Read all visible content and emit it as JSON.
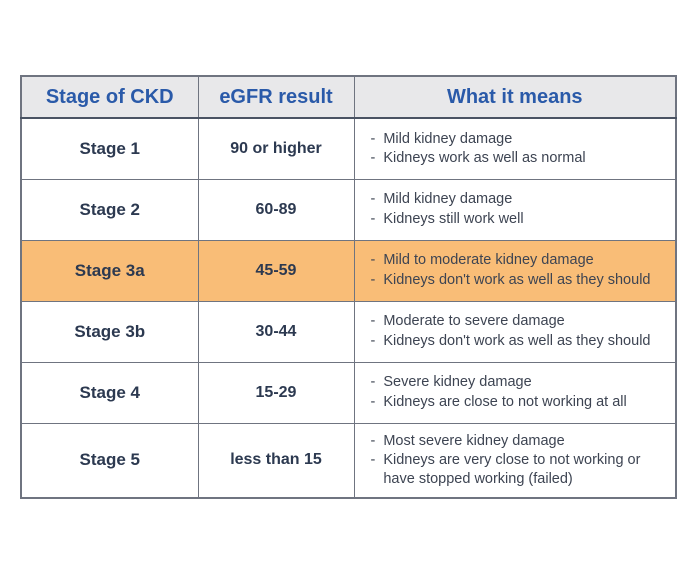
{
  "colors": {
    "header_bg": "#e8e8ea",
    "header_text": "#2a5aa9",
    "header_border": "#4a5363",
    "highlight_bg": "#f9bd77",
    "body_text": "#2c3950",
    "meaning_text": "#3d4452",
    "border": "#6f7480"
  },
  "chart_data": {
    "type": "table",
    "bullet": "-",
    "columns": [
      "Stage of CKD",
      "eGFR result",
      "What it means"
    ],
    "rows": [
      {
        "stage": "Stage 1",
        "egfr": "90 or higher",
        "highlighted": false,
        "meaning": [
          "Mild kidney damage",
          "Kidneys work as well as normal"
        ]
      },
      {
        "stage": "Stage 2",
        "egfr": "60-89",
        "highlighted": false,
        "meaning": [
          "Mild kidney damage",
          "Kidneys still work well"
        ]
      },
      {
        "stage": "Stage 3a",
        "egfr": "45-59",
        "highlighted": true,
        "meaning": [
          "Mild to moderate kidney damage",
          "Kidneys don't work as well as they should"
        ]
      },
      {
        "stage": "Stage 3b",
        "egfr": "30-44",
        "highlighted": false,
        "meaning": [
          "Moderate to severe damage",
          "Kidneys don't work as well as they should"
        ]
      },
      {
        "stage": "Stage 4",
        "egfr": "15-29",
        "highlighted": false,
        "meaning": [
          "Severe kidney damage",
          "Kidneys are close to not working at all"
        ]
      },
      {
        "stage": "Stage 5",
        "egfr": "less than 15",
        "highlighted": false,
        "meaning": [
          "Most severe kidney damage",
          "Kidneys are very close to not working or have stopped working (failed)"
        ]
      }
    ]
  }
}
